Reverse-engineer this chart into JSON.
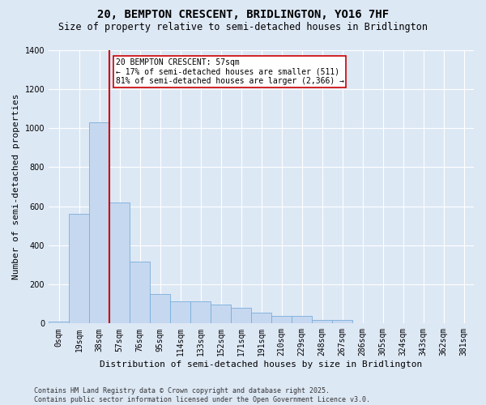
{
  "title_line1": "20, BEMPTON CRESCENT, BRIDLINGTON, YO16 7HF",
  "title_line2": "Size of property relative to semi-detached houses in Bridlington",
  "xlabel": "Distribution of semi-detached houses by size in Bridlington",
  "ylabel": "Number of semi-detached properties",
  "footnote": "Contains HM Land Registry data © Crown copyright and database right 2025.\nContains public sector information licensed under the Open Government Licence v3.0.",
  "bar_categories": [
    "0sqm",
    "19sqm",
    "38sqm",
    "57sqm",
    "76sqm",
    "95sqm",
    "114sqm",
    "133sqm",
    "152sqm",
    "171sqm",
    "191sqm",
    "210sqm",
    "229sqm",
    "248sqm",
    "267sqm",
    "286sqm",
    "305sqm",
    "324sqm",
    "343sqm",
    "362sqm",
    "381sqm"
  ],
  "bar_values": [
    10,
    560,
    1030,
    620,
    315,
    150,
    115,
    115,
    95,
    80,
    55,
    40,
    40,
    20,
    20,
    0,
    0,
    0,
    0,
    0,
    0
  ],
  "bar_color": "#c5d8f0",
  "bar_edge_color": "#7aadda",
  "property_label": "20 BEMPTON CRESCENT: 57sqm",
  "annotation_smaller": "← 17% of semi-detached houses are smaller (511)",
  "annotation_larger": "81% of semi-detached houses are larger (2,366) →",
  "red_line_color": "#cc0000",
  "annotation_box_edgecolor": "#cc0000",
  "bg_color": "#dde8f5",
  "plot_bg_color": "#dde8f5",
  "ylim_max": 1400,
  "yticks": [
    0,
    200,
    400,
    600,
    800,
    1000,
    1200,
    1400
  ],
  "grid_color": "#ffffff",
  "title_fontsize": 10,
  "subtitle_fontsize": 8.5,
  "axis_label_fontsize": 8,
  "tick_fontsize": 7,
  "annotation_fontsize": 7,
  "footnote_fontsize": 6
}
